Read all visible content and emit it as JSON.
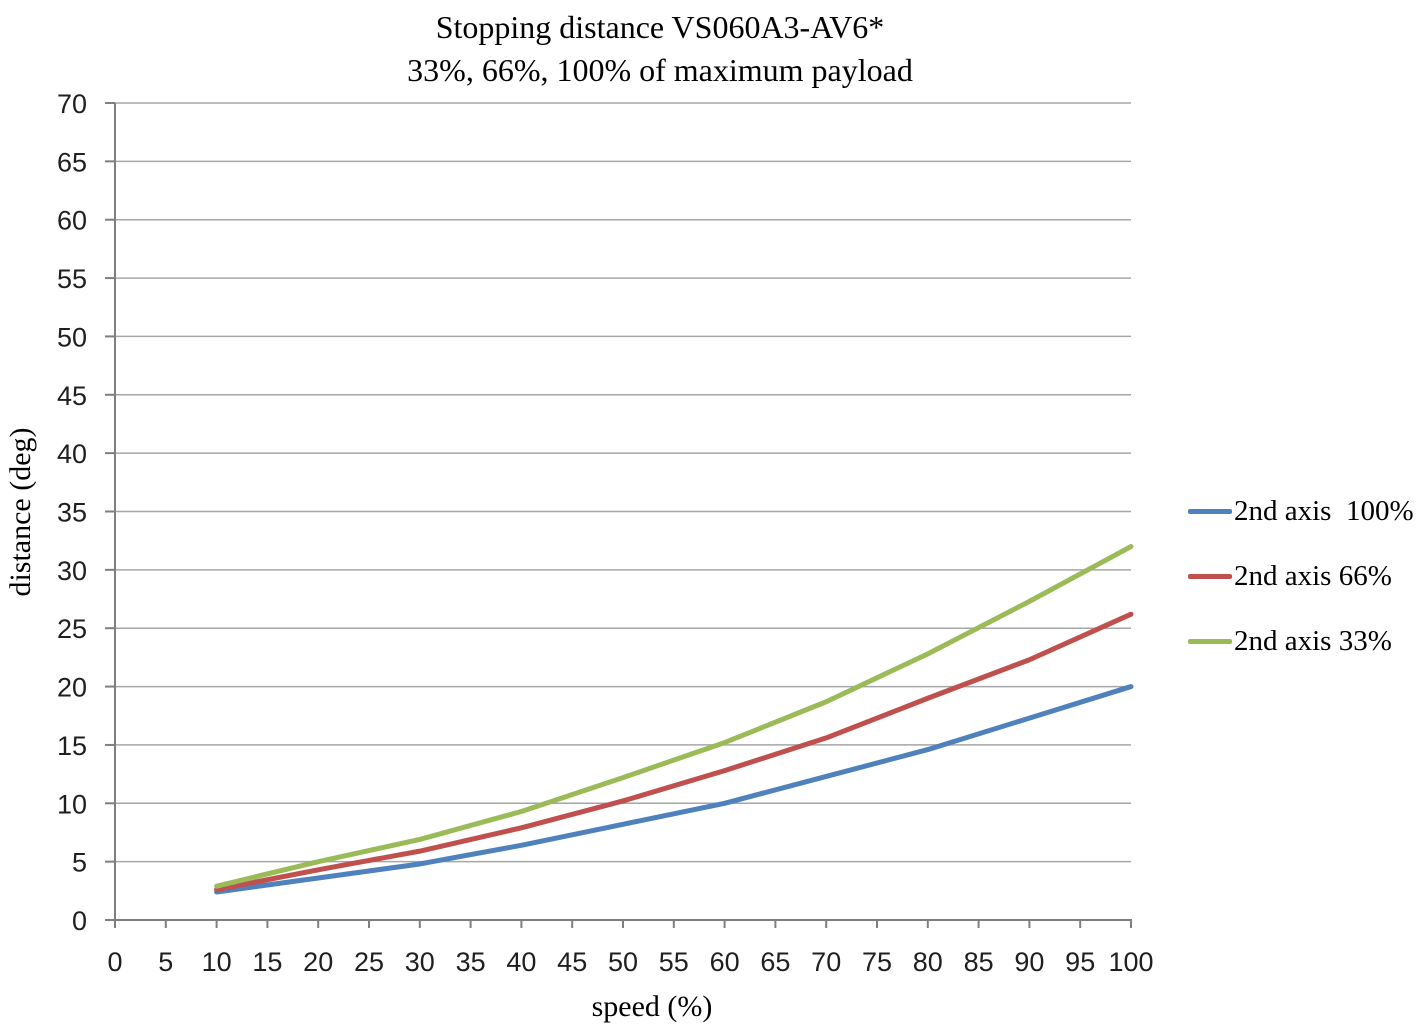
{
  "title": "Stopping distance VS060A3-AV6*",
  "subtitle": "33%, 66%, 100% of maximum payload",
  "chart_data": {
    "type": "line",
    "title": "Stopping distance VS060A3-AV6*",
    "subtitle": "33%, 66%, 100% of maximum payload",
    "xlabel": "speed (%)",
    "ylabel": "distance (deg)",
    "xlim": [
      0,
      100
    ],
    "ylim": [
      0,
      70
    ],
    "x_tick_step": 5,
    "y_tick_step": 5,
    "x_ticks": [
      0,
      5,
      10,
      15,
      20,
      25,
      30,
      35,
      40,
      45,
      50,
      55,
      60,
      65,
      70,
      75,
      80,
      85,
      90,
      95,
      100
    ],
    "y_ticks": [
      0,
      5,
      10,
      15,
      20,
      25,
      30,
      35,
      40,
      45,
      50,
      55,
      60,
      65,
      70
    ],
    "grid": "horizontal",
    "legend_position": "right",
    "x": [
      10,
      20,
      30,
      40,
      50,
      60,
      70,
      80,
      90,
      100
    ],
    "series": [
      {
        "name": "2nd axis  100%",
        "color": "#4F81BD",
        "values": [
          2.4,
          3.6,
          4.8,
          6.4,
          8.2,
          10.0,
          12.3,
          14.6,
          17.3,
          20.0
        ]
      },
      {
        "name": "2nd axis 66%",
        "color": "#C0504D",
        "values": [
          2.6,
          4.3,
          5.9,
          7.9,
          10.2,
          12.8,
          15.6,
          19.0,
          22.3,
          26.2
        ]
      },
      {
        "name": "2nd axis 33%",
        "color": "#9BBB59",
        "values": [
          2.9,
          5.0,
          6.9,
          9.3,
          12.2,
          15.2,
          18.7,
          22.8,
          27.3,
          32.0
        ]
      }
    ]
  },
  "colors": {
    "gridline": "#A6A6A6",
    "axis": "#7F7F7F",
    "tick_text": "#1f1f1f",
    "series_blue": "#4F81BD",
    "series_red": "#C0504D",
    "series_green": "#9BBB59"
  }
}
